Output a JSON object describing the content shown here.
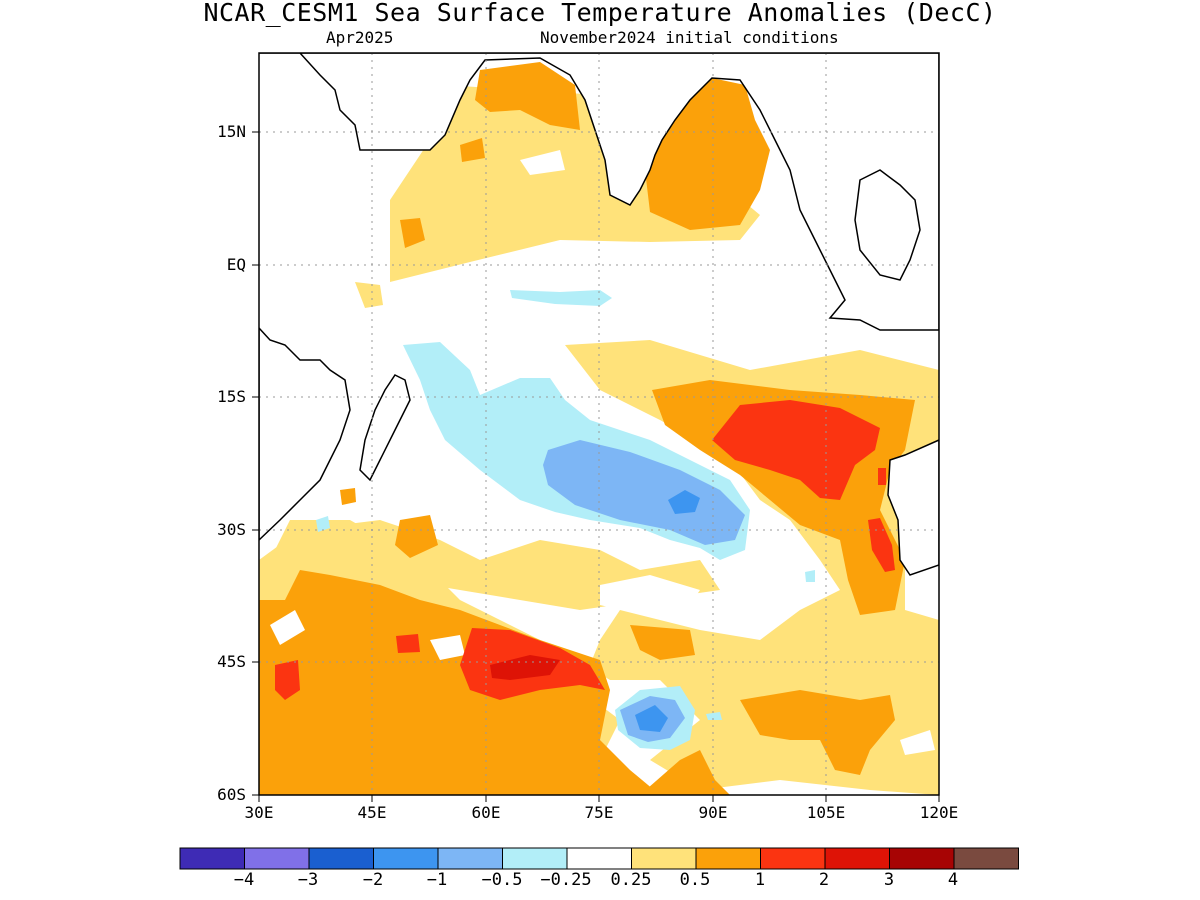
{
  "title": "NCAR_CESM1 Sea Surface Temperature Anomalies (DecC)",
  "subtitle_left": "Apr2025",
  "subtitle_right": "November2024 initial conditions",
  "map": {
    "lon_range": [
      30,
      120
    ],
    "lat_range": [
      -60,
      24
    ],
    "grid": "dotted",
    "lat_ticks": [
      {
        "value": 15,
        "label": "15N"
      },
      {
        "value": 0,
        "label": "EQ"
      },
      {
        "value": -15,
        "label": "15S"
      },
      {
        "value": -30,
        "label": "30S"
      },
      {
        "value": -45,
        "label": "45S"
      },
      {
        "value": -60,
        "label": "60S"
      }
    ],
    "lon_ticks": [
      {
        "value": 30,
        "label": "30E"
      },
      {
        "value": 45,
        "label": "45E"
      },
      {
        "value": 60,
        "label": "60E"
      },
      {
        "value": 75,
        "label": "75E"
      },
      {
        "value": 90,
        "label": "90E"
      },
      {
        "value": 105,
        "label": "105E"
      },
      {
        "value": 120,
        "label": "120E"
      }
    ]
  },
  "colorbar": {
    "colors": [
      "#3e2bb5",
      "#8070e8",
      "#1a5fd0",
      "#3d95f0",
      "#7db6f5",
      "#b2eef8",
      "#ffffff",
      "#ffe27a",
      "#fba10a",
      "#fb3411",
      "#de1306",
      "#a70404",
      "#7a4a3f"
    ],
    "labels": [
      "−4",
      "−3",
      "−2",
      "−1",
      "−0.5",
      "−0.25",
      "0.25",
      "0.5",
      "1",
      "2",
      "3",
      "4"
    ]
  }
}
